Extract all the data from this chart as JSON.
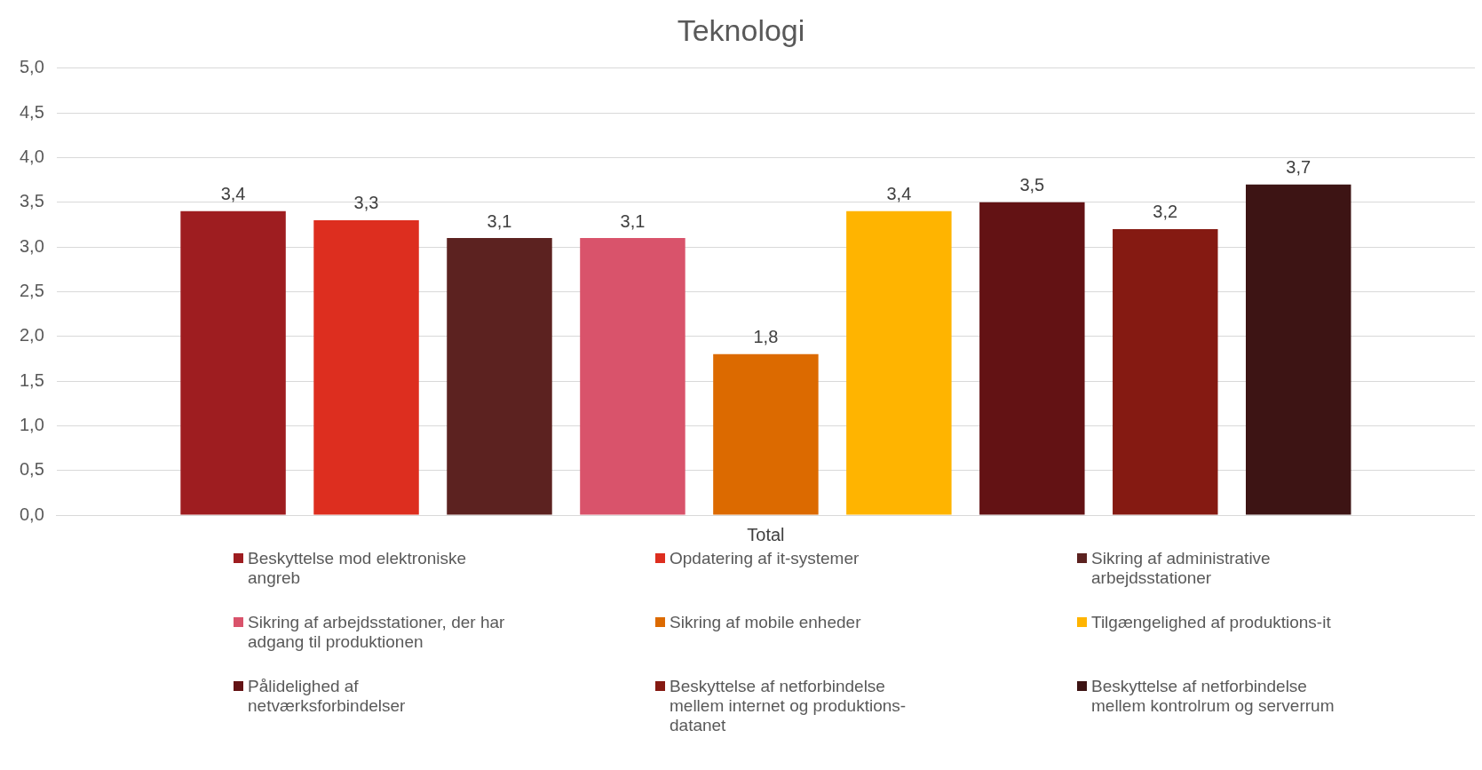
{
  "chart_data": {
    "type": "bar",
    "title": "Teknologi",
    "categories": [
      "Total"
    ],
    "ylim": [
      0,
      5
    ],
    "yticks": [
      {
        "value": 0,
        "label": "0,0"
      },
      {
        "value": 0.5,
        "label": "0,5"
      },
      {
        "value": 1,
        "label": "1,0"
      },
      {
        "value": 1.5,
        "label": "1,5"
      },
      {
        "value": 2,
        "label": "2,0"
      },
      {
        "value": 2.5,
        "label": "2,5"
      },
      {
        "value": 3,
        "label": "3,0"
      },
      {
        "value": 3.5,
        "label": "3,5"
      },
      {
        "value": 4,
        "label": "4,0"
      },
      {
        "value": 4.5,
        "label": "4,5"
      },
      {
        "value": 5,
        "label": "5,0"
      }
    ],
    "grid": "y",
    "legend": "bottom",
    "series": [
      {
        "name": "Beskyttelse mod elektroniske angreb",
        "color": "#9e1d20",
        "values": [
          3.4
        ],
        "value_labels": [
          "3,4"
        ]
      },
      {
        "name": "Opdatering af it-systemer",
        "color": "#dd2e1f",
        "values": [
          3.3
        ],
        "value_labels": [
          "3,3"
        ]
      },
      {
        "name": "Sikring af administrative arbejdsstationer",
        "color": "#5c2220",
        "values": [
          3.1
        ],
        "value_labels": [
          "3,1"
        ]
      },
      {
        "name": "Sikring af arbejdsstationer, der har adgang til produktionen",
        "color": "#d9536b",
        "values": [
          3.1
        ],
        "value_labels": [
          "3,1"
        ]
      },
      {
        "name": "Sikring af mobile enheder",
        "color": "#dc6a00",
        "values": [
          1.8
        ],
        "value_labels": [
          "1,8"
        ]
      },
      {
        "name": "Tilgængelighed af produktions-it",
        "color": "#ffb400",
        "values": [
          3.4
        ],
        "value_labels": [
          "3,4"
        ]
      },
      {
        "name": "Pålidelighed af netværksforbindelser",
        "color": "#631214",
        "values": [
          3.5
        ],
        "value_labels": [
          "3,5"
        ]
      },
      {
        "name": "Beskyttelse af netforbindelse mellem internet og produktions-datanet",
        "color": "#851a12",
        "values": [
          3.2
        ],
        "value_labels": [
          "3,2"
        ]
      },
      {
        "name": "Beskyttelse af netforbindelse mellem kontrolrum og serverrum",
        "color": "#3d1414",
        "values": [
          3.7
        ],
        "value_labels": [
          "3,7"
        ]
      }
    ]
  }
}
